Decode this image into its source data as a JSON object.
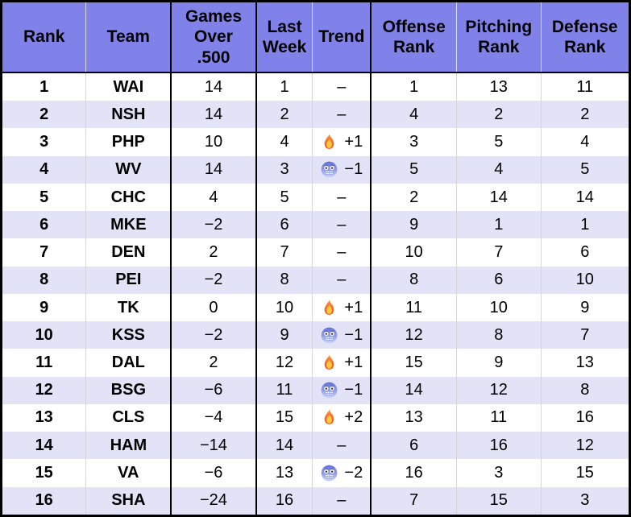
{
  "colors": {
    "header_bg": "#8182e9",
    "row_bg": "#ffffff",
    "row_alt_bg": "#e3e3f8",
    "border_dark": "#000000",
    "grid_light": "#d6d6d6",
    "text": "#000000",
    "fire_orange": "#fb7c1e",
    "fire_yellow": "#ffc83d",
    "cold_face_blue": "#93a1ec"
  },
  "icons": {
    "up_trend": "fire-icon",
    "down_trend": "cold-face-icon"
  },
  "chart_data": {
    "type": "table",
    "columns": [
      "Rank",
      "Team",
      "Games\nOver\n.500",
      "Last\nWeek",
      "Trend",
      "Offense\nRank",
      "Pitching\nRank",
      "Defense\nRank"
    ],
    "rows": [
      {
        "rank": "1",
        "team": "WAI",
        "games_over_500": "14",
        "last_week": "1",
        "trend": {
          "icon": null,
          "label": "–"
        },
        "offense_rank": "1",
        "pitching_rank": "13",
        "defense_rank": "11"
      },
      {
        "rank": "2",
        "team": "NSH",
        "games_over_500": "14",
        "last_week": "2",
        "trend": {
          "icon": null,
          "label": "–"
        },
        "offense_rank": "4",
        "pitching_rank": "2",
        "defense_rank": "2"
      },
      {
        "rank": "3",
        "team": "PHP",
        "games_over_500": "10",
        "last_week": "4",
        "trend": {
          "icon": "fire",
          "label": "+1"
        },
        "offense_rank": "3",
        "pitching_rank": "5",
        "defense_rank": "4"
      },
      {
        "rank": "4",
        "team": "WV",
        "games_over_500": "14",
        "last_week": "3",
        "trend": {
          "icon": "cold",
          "label": "−1"
        },
        "offense_rank": "5",
        "pitching_rank": "4",
        "defense_rank": "5"
      },
      {
        "rank": "5",
        "team": "CHC",
        "games_over_500": "4",
        "last_week": "5",
        "trend": {
          "icon": null,
          "label": "–"
        },
        "offense_rank": "2",
        "pitching_rank": "14",
        "defense_rank": "14"
      },
      {
        "rank": "6",
        "team": "MKE",
        "games_over_500": "−2",
        "last_week": "6",
        "trend": {
          "icon": null,
          "label": "–"
        },
        "offense_rank": "9",
        "pitching_rank": "1",
        "defense_rank": "1"
      },
      {
        "rank": "7",
        "team": "DEN",
        "games_over_500": "2",
        "last_week": "7",
        "trend": {
          "icon": null,
          "label": "–"
        },
        "offense_rank": "10",
        "pitching_rank": "7",
        "defense_rank": "6"
      },
      {
        "rank": "8",
        "team": "PEI",
        "games_over_500": "−2",
        "last_week": "8",
        "trend": {
          "icon": null,
          "label": "–"
        },
        "offense_rank": "8",
        "pitching_rank": "6",
        "defense_rank": "10"
      },
      {
        "rank": "9",
        "team": "TK",
        "games_over_500": "0",
        "last_week": "10",
        "trend": {
          "icon": "fire",
          "label": "+1"
        },
        "offense_rank": "11",
        "pitching_rank": "10",
        "defense_rank": "9"
      },
      {
        "rank": "10",
        "team": "KSS",
        "games_over_500": "−2",
        "last_week": "9",
        "trend": {
          "icon": "cold",
          "label": "−1"
        },
        "offense_rank": "12",
        "pitching_rank": "8",
        "defense_rank": "7"
      },
      {
        "rank": "11",
        "team": "DAL",
        "games_over_500": "2",
        "last_week": "12",
        "trend": {
          "icon": "fire",
          "label": "+1"
        },
        "offense_rank": "15",
        "pitching_rank": "9",
        "defense_rank": "13"
      },
      {
        "rank": "12",
        "team": "BSG",
        "games_over_500": "−6",
        "last_week": "11",
        "trend": {
          "icon": "cold",
          "label": "−1"
        },
        "offense_rank": "14",
        "pitching_rank": "12",
        "defense_rank": "8"
      },
      {
        "rank": "13",
        "team": "CLS",
        "games_over_500": "−4",
        "last_week": "15",
        "trend": {
          "icon": "fire",
          "label": "+2"
        },
        "offense_rank": "13",
        "pitching_rank": "11",
        "defense_rank": "16"
      },
      {
        "rank": "14",
        "team": "HAM",
        "games_over_500": "−14",
        "last_week": "14",
        "trend": {
          "icon": null,
          "label": "–"
        },
        "offense_rank": "6",
        "pitching_rank": "16",
        "defense_rank": "12"
      },
      {
        "rank": "15",
        "team": "VA",
        "games_over_500": "−6",
        "last_week": "13",
        "trend": {
          "icon": "cold",
          "label": "−2"
        },
        "offense_rank": "16",
        "pitching_rank": "3",
        "defense_rank": "15"
      },
      {
        "rank": "16",
        "team": "SHA",
        "games_over_500": "−24",
        "last_week": "16",
        "trend": {
          "icon": null,
          "label": "–"
        },
        "offense_rank": "7",
        "pitching_rank": "15",
        "defense_rank": "3"
      }
    ]
  }
}
